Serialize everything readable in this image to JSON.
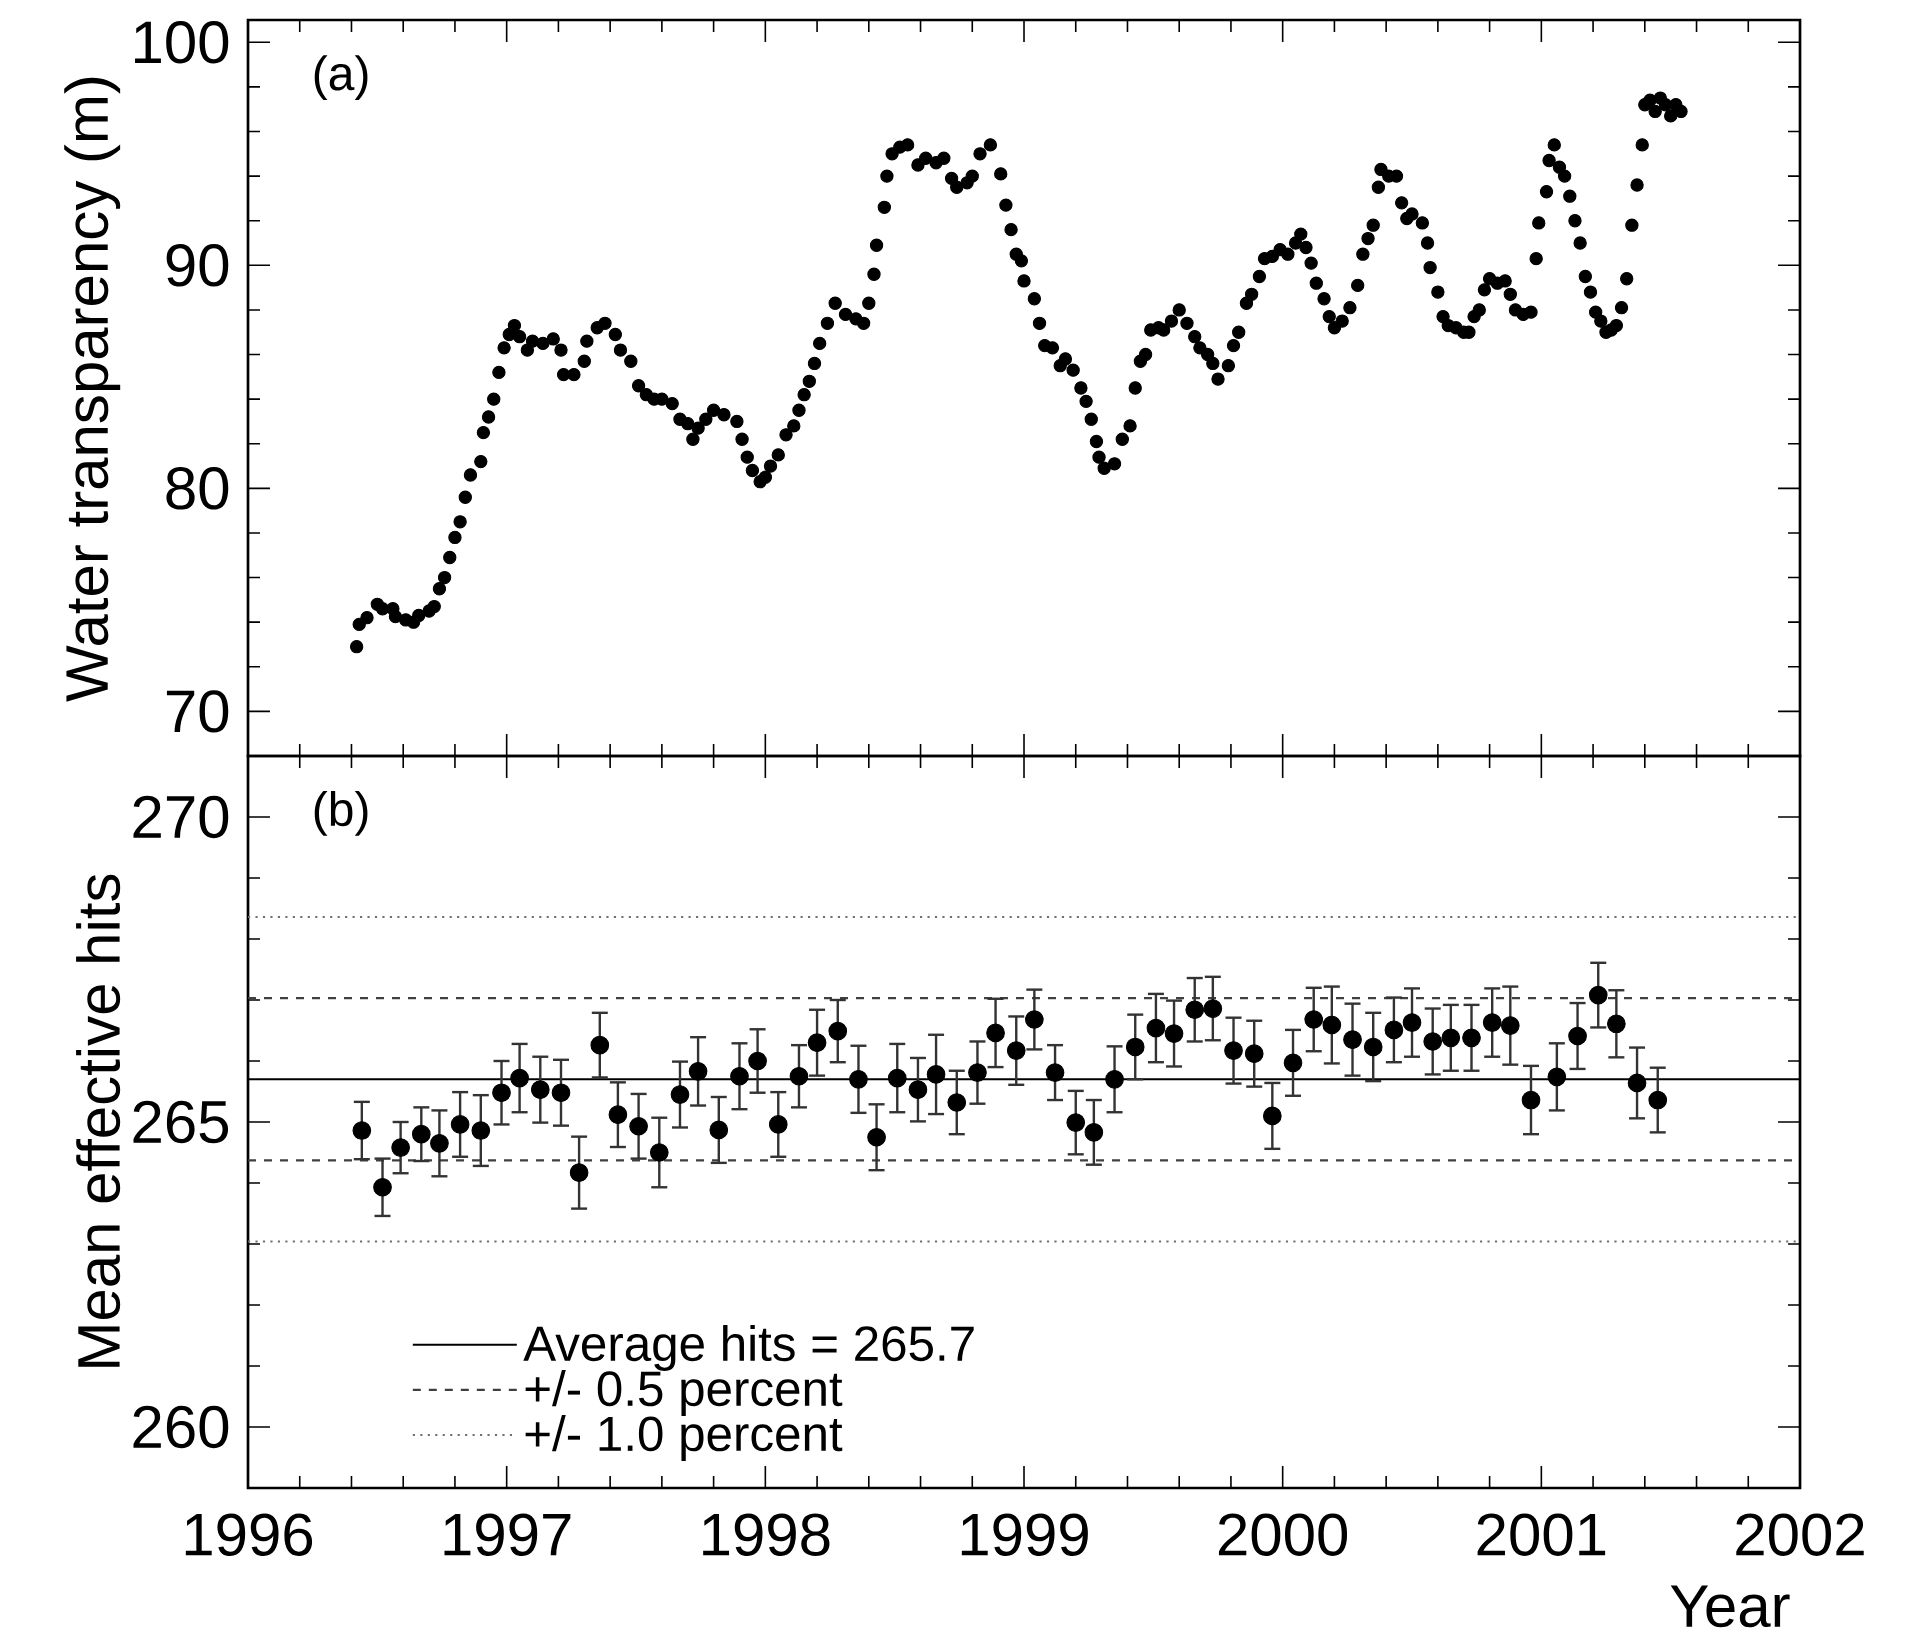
{
  "chart_data": [
    {
      "type": "scatter",
      "ylabel": "Water transparency (m)",
      "annotations": [
        "(a)"
      ],
      "marker": "circle",
      "tick_labels": "y",
      "xlim": [
        1996,
        2002
      ],
      "xticks": [
        1996,
        1997,
        1998,
        1999,
        2000,
        2001,
        2002
      ],
      "ylim": [
        68,
        101
      ],
      "yticks": [
        70,
        80,
        90,
        100
      ],
      "series": [
        {
          "color": "#000000",
          "x": [
            1996.42,
            1996.43,
            1996.46,
            1996.5,
            1996.52,
            1996.56,
            1996.57,
            1996.61,
            1996.64,
            1996.66,
            1996.7,
            1996.72,
            1996.74,
            1996.76,
            1996.78,
            1996.8,
            1996.82,
            1996.84,
            1996.86,
            1996.9,
            1996.91,
            1996.93,
            1996.95,
            1996.97,
            1996.99,
            1997.01,
            1997.03,
            1997.05,
            1997.08,
            1997.1,
            1997.14,
            1997.18,
            1997.21,
            1997.22,
            1997.26,
            1997.3,
            1997.31,
            1997.35,
            1997.38,
            1997.42,
            1997.44,
            1997.48,
            1997.51,
            1997.54,
            1997.57,
            1997.6,
            1997.64,
            1997.67,
            1997.7,
            1997.72,
            1997.74,
            1997.77,
            1997.8,
            1997.84,
            1997.89,
            1997.91,
            1997.93,
            1997.95,
            1997.98,
            1998.0,
            1998.02,
            1998.05,
            1998.08,
            1998.11,
            1998.13,
            1998.15,
            1998.17,
            1998.19,
            1998.21,
            1998.24,
            1998.27,
            1998.31,
            1998.35,
            1998.38,
            1998.4,
            1998.42,
            1998.43,
            1998.46,
            1998.47,
            1998.49,
            1998.52,
            1998.55,
            1998.59,
            1998.62,
            1998.66,
            1998.69,
            1998.72,
            1998.74,
            1998.78,
            1998.8,
            1998.83,
            1998.87,
            1998.91,
            1998.93,
            1998.95,
            1998.97,
            1998.99,
            1999.0,
            1999.04,
            1999.06,
            1999.08,
            1999.11,
            1999.14,
            1999.16,
            1999.19,
            1999.22,
            1999.24,
            1999.26,
            1999.28,
            1999.29,
            1999.31,
            1999.35,
            1999.38,
            1999.41,
            1999.43,
            1999.45,
            1999.47,
            1999.49,
            1999.52,
            1999.54,
            1999.57,
            1999.6,
            1999.63,
            1999.66,
            1999.68,
            1999.71,
            1999.73,
            1999.75,
            1999.79,
            1999.81,
            1999.83,
            1999.86,
            1999.88,
            1999.91,
            1999.93,
            1999.96,
            1999.99,
            2000.02,
            2000.05,
            2000.07,
            2000.09,
            2000.11,
            2000.13,
            2000.16,
            2000.18,
            2000.2,
            2000.23,
            2000.26,
            2000.29,
            2000.31,
            2000.33,
            2000.35,
            2000.37,
            2000.38,
            2000.41,
            2000.44,
            2000.46,
            2000.48,
            2000.5,
            2000.54,
            2000.56,
            2000.57,
            2000.6,
            2000.62,
            2000.64,
            2000.67,
            2000.7,
            2000.72,
            2000.74,
            2000.76,
            2000.78,
            2000.8,
            2000.83,
            2000.86,
            2000.88,
            2000.9,
            2000.93,
            2000.96,
            2000.98,
            2000.99,
            2001.02,
            2001.03,
            2001.05,
            2001.07,
            2001.09,
            2001.11,
            2001.13,
            2001.15,
            2001.17,
            2001.19,
            2001.21,
            2001.23,
            2001.25,
            2001.27,
            2001.29,
            2001.31,
            2001.33,
            2001.35,
            2001.37,
            2001.39,
            2001.4,
            2001.42,
            2001.44,
            2001.46,
            2001.48,
            2001.5,
            2001.52,
            2001.54
          ],
          "values": [
            72.9,
            73.9,
            74.2,
            74.8,
            74.6,
            74.6,
            74.25,
            74.1,
            74.0,
            74.3,
            74.5,
            74.7,
            75.5,
            76.0,
            76.9,
            77.8,
            78.5,
            79.6,
            80.6,
            81.2,
            82.5,
            83.2,
            84.0,
            85.2,
            86.3,
            86.9,
            87.3,
            86.8,
            86.2,
            86.6,
            86.5,
            86.7,
            86.2,
            85.1,
            85.1,
            85.7,
            86.6,
            87.2,
            87.4,
            86.9,
            86.2,
            85.7,
            84.6,
            84.2,
            84.0,
            84.0,
            83.8,
            83.1,
            82.9,
            82.2,
            82.7,
            83.1,
            83.5,
            83.3,
            83.0,
            82.2,
            81.4,
            80.8,
            80.3,
            80.5,
            81.0,
            81.5,
            82.4,
            82.8,
            83.5,
            84.2,
            84.8,
            85.6,
            86.5,
            87.4,
            88.3,
            87.8,
            87.6,
            87.4,
            88.3,
            89.6,
            90.9,
            92.6,
            94.0,
            95.0,
            95.3,
            95.4,
            94.5,
            94.8,
            94.6,
            94.8,
            93.9,
            93.5,
            93.7,
            94.0,
            95.0,
            95.4,
            94.1,
            92.7,
            91.6,
            90.5,
            90.2,
            89.3,
            88.5,
            87.4,
            86.4,
            86.3,
            85.5,
            85.8,
            85.3,
            84.5,
            83.9,
            83.1,
            82.1,
            81.4,
            80.9,
            81.1,
            82.2,
            82.8,
            84.5,
            85.7,
            86.0,
            87.1,
            87.2,
            87.1,
            87.5,
            88.0,
            87.4,
            86.8,
            86.3,
            86.0,
            85.6,
            84.9,
            85.5,
            86.4,
            87.0,
            88.3,
            88.7,
            89.5,
            90.3,
            90.4,
            90.7,
            90.5,
            91.0,
            91.4,
            90.8,
            90.1,
            89.2,
            88.5,
            87.7,
            87.2,
            87.5,
            88.1,
            89.1,
            90.5,
            91.2,
            91.8,
            93.5,
            94.3,
            94.0,
            94.0,
            92.8,
            92.1,
            92.3,
            91.9,
            91.0,
            89.9,
            88.8,
            87.7,
            87.3,
            87.2,
            87.0,
            87.0,
            87.7,
            88.0,
            88.9,
            89.4,
            89.2,
            89.3,
            88.7,
            88.0,
            87.8,
            87.9,
            90.3,
            91.9,
            93.3,
            94.7,
            95.4,
            94.4,
            94.0,
            93.1,
            92.0,
            91.0,
            89.5,
            88.8,
            87.9,
            87.5,
            87.0,
            87.1,
            87.3,
            88.1,
            89.4,
            91.8,
            93.6,
            95.4,
            97.2,
            97.4,
            96.9,
            97.5,
            97.2,
            96.7,
            97.2,
            96.9
          ]
        }
      ]
    },
    {
      "type": "scatter",
      "xlabel": "Year",
      "ylabel": "Mean effective hits",
      "annotations": [
        "(b)"
      ],
      "marker": "circle",
      "legend": "bottom left",
      "xlim": [
        1996,
        2002
      ],
      "xticks": [
        1996,
        1997,
        1998,
        1999,
        2000,
        2001,
        2002
      ],
      "ylim": [
        259,
        271
      ],
      "yticks": [
        260,
        265,
        270
      ],
      "ref_lines": [
        {
          "axis": "y",
          "value": 265.7,
          "label": "Average hits = 265.7",
          "line_style": "solid",
          "color": "#000000"
        },
        {
          "axis": "y",
          "value": 267.03,
          "label": "+/- 0.5 percent",
          "line_style": "dashed",
          "color": "#404040"
        },
        {
          "axis": "y",
          "value": 264.37,
          "line_style": "dashed",
          "color": "#404040"
        },
        {
          "axis": "y",
          "value": 268.36,
          "label": "+/- 1.0 percent",
          "line_style": "dotted",
          "color": "#707070"
        },
        {
          "axis": "y",
          "value": 263.04,
          "line_style": "dotted",
          "color": "#707070"
        }
      ],
      "series": [
        {
          "color": "#000000",
          "x": [
            1996.44,
            1996.52,
            1996.59,
            1996.67,
            1996.74,
            1996.82,
            1996.9,
            1996.98,
            1997.05,
            1997.13,
            1997.21,
            1997.28,
            1997.36,
            1997.43,
            1997.51,
            1997.59,
            1997.67,
            1997.74,
            1997.82,
            1997.9,
            1997.97,
            1998.05,
            1998.13,
            1998.2,
            1998.28,
            1998.36,
            1998.43,
            1998.51,
            1998.59,
            1998.66,
            1998.74,
            1998.82,
            1998.89,
            1998.97,
            1999.04,
            1999.12,
            1999.2,
            1999.27,
            1999.35,
            1999.43,
            1999.51,
            1999.58,
            1999.66,
            1999.73,
            1999.81,
            1999.89,
            1999.96,
            2000.04,
            2000.12,
            2000.19,
            2000.27,
            2000.35,
            2000.43,
            2000.5,
            2000.58,
            2000.65,
            2000.73,
            2000.81,
            2000.88,
            2000.96,
            2001.06,
            2001.14,
            2001.22,
            2001.29,
            2001.37,
            2001.45
          ],
          "values": [
            264.86,
            263.93,
            264.58,
            264.8,
            264.65,
            264.96,
            264.86,
            265.48,
            265.72,
            265.53,
            265.48,
            264.17,
            266.26,
            265.12,
            264.93,
            264.5,
            265.45,
            265.83,
            264.87,
            265.75,
            266.0,
            264.96,
            265.75,
            266.3,
            266.49,
            265.7,
            264.75,
            265.72,
            265.53,
            265.78,
            265.32,
            265.81,
            266.46,
            266.17,
            266.68,
            265.81,
            264.99,
            264.83,
            265.7,
            266.23,
            266.54,
            266.45,
            266.84,
            266.86,
            266.17,
            266.12,
            265.1,
            265.97,
            266.68,
            266.59,
            266.35,
            266.23,
            266.51,
            266.63,
            266.32,
            266.38,
            266.38,
            266.63,
            266.58,
            265.36,
            265.74,
            266.41,
            267.08,
            266.61,
            265.64,
            265.36
          ],
          "errors": [
            0.47,
            0.47,
            0.42,
            0.44,
            0.54,
            0.53,
            0.58,
            0.52,
            0.56,
            0.54,
            0.54,
            0.59,
            0.53,
            0.53,
            0.53,
            0.57,
            0.54,
            0.56,
            0.54,
            0.54,
            0.52,
            0.53,
            0.51,
            0.54,
            0.51,
            0.55,
            0.54,
            0.56,
            0.52,
            0.65,
            0.52,
            0.51,
            0.56,
            0.56,
            0.49,
            0.45,
            0.52,
            0.53,
            0.54,
            0.53,
            0.56,
            0.54,
            0.52,
            0.52,
            0.54,
            0.54,
            0.54,
            0.54,
            0.52,
            0.63,
            0.59,
            0.56,
            0.53,
            0.56,
            0.54,
            0.54,
            0.54,
            0.56,
            0.64,
            0.56,
            0.55,
            0.54,
            0.53,
            0.55,
            0.58,
            0.53
          ]
        }
      ]
    }
  ]
}
